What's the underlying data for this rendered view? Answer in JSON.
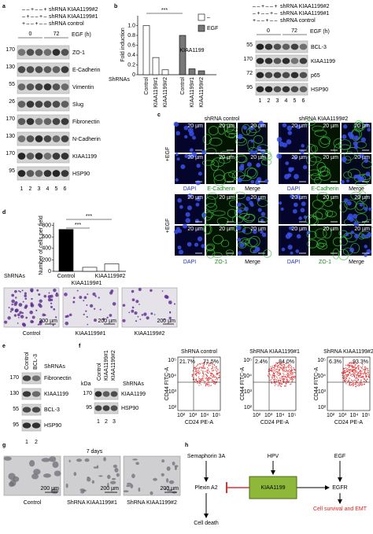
{
  "panel_labels": [
    "a",
    "b",
    "c",
    "d",
    "e",
    "f",
    "g",
    "h"
  ],
  "a": {
    "conditions": [
      {
        "label": "shRNA KIAA1199#2",
        "signs": [
          "–",
          "–",
          "+",
          "–",
          "–",
          "+"
        ]
      },
      {
        "label": "shRNA KIAA1199#1",
        "signs": [
          "–",
          "+",
          "–",
          "–",
          "+",
          "–"
        ]
      },
      {
        "label": "shRNA control",
        "signs": [
          "+",
          "–",
          "–",
          "+",
          "–",
          "–"
        ]
      }
    ],
    "time_points": [
      "0",
      "72"
    ],
    "time_label": "EGF (h)",
    "blots": [
      {
        "name": "ZO-1",
        "kda": "170"
      },
      {
        "name": "E-Cadherin",
        "kda": "130"
      },
      {
        "name": "Vimentin",
        "kda": "55"
      },
      {
        "name": "Slug",
        "kda": "26"
      },
      {
        "name": "Fibronectin",
        "kda": "170"
      },
      {
        "name": "N-Cadherin",
        "kda": "130"
      },
      {
        "name": "KIAA1199",
        "kda": "170"
      },
      {
        "name": "HSP90",
        "kda": "95"
      }
    ],
    "lanes": [
      "1",
      "2",
      "3",
      "4",
      "5",
      "6"
    ]
  },
  "b": {
    "chart": {
      "y_label": "Fold induction",
      "ylim": [
        0,
        1.2
      ],
      "yticks": [
        0,
        0.2,
        0.4,
        0.6,
        0.8,
        {
          "value": 1,
          "label": "1.0"
        }
      ],
      "categories": [
        "Control",
        "KIAA1199#1",
        "KIAA1199#2"
      ],
      "series": [
        {
          "name": "–",
          "color": "#ffffff",
          "values": [
            1.0,
            0.35,
            0.1
          ]
        },
        {
          "name": "EGF",
          "color": "#777777",
          "values": [
            0.8,
            0.12,
            0.08
          ]
        }
      ],
      "annotation": "***",
      "gene_label": "KIAA1199",
      "group_label": "ShRNAs"
    },
    "blot": {
      "conditions": [
        {
          "label": "shRNA KIAA1199#2",
          "signs": [
            "–",
            "–",
            "+",
            "–",
            "–",
            "+"
          ]
        },
        {
          "label": "shRNA KIAA1199#1",
          "signs": [
            "–",
            "+",
            "–",
            "–",
            "+",
            "–"
          ]
        },
        {
          "label": "shRNA control",
          "signs": [
            "+",
            "–",
            "–",
            "+",
            "–",
            "–"
          ]
        }
      ],
      "time_points": [
        "0",
        "72"
      ],
      "time_label": "EGF (h)",
      "blots": [
        {
          "name": "BCL-3",
          "kda": "55"
        },
        {
          "name": "KIAA1199",
          "kda": "170"
        },
        {
          "name": "p65",
          "kda": "72"
        },
        {
          "name": "HSP90",
          "kda": "95"
        }
      ],
      "lanes": [
        "1",
        "2",
        "3",
        "4",
        "5",
        "6"
      ]
    }
  },
  "c": {
    "groups": [
      "shRNA control",
      "shRNA KIAA1199#2"
    ],
    "treatment": "+EGF",
    "rows": [
      {
        "channels": [
          "DAPI",
          "E-Cadherin",
          "Merge"
        ]
      },
      {
        "channels": [
          "DAPI",
          "ZO-1",
          "Merge"
        ]
      }
    ],
    "scale": "20 µm"
  },
  "d": {
    "chart": {
      "y_label": "Number of cells per field",
      "ylim": [
        0,
        850
      ],
      "yticks": [
        0,
        200,
        400,
        600,
        800
      ],
      "categories": [
        "Control",
        "KIAA1199#1",
        "KIAA1199#2"
      ],
      "values": [
        730,
        70,
        130
      ],
      "colors": [
        "#000000",
        "#ffffff",
        "#ffffff"
      ],
      "annotations": [
        "***",
        "***"
      ],
      "group_label": "ShRNAs"
    },
    "images": {
      "captions": [
        "Control",
        "KIAA1199#1",
        "KIAA1199#2"
      ],
      "scale": "200 µm"
    }
  },
  "e": {
    "samples": [
      "Control",
      "BCL-3"
    ],
    "group_label": "ShRNAs",
    "blots": [
      {
        "name": "Fibronectin",
        "kda": "170"
      },
      {
        "name": "KIAA1199",
        "kda": "130"
      },
      {
        "name": "BCL-3",
        "kda": "55"
      },
      {
        "name": "HSP90",
        "kda": "95"
      }
    ],
    "lanes": [
      "1",
      "2"
    ]
  },
  "f": {
    "kda_label": "kDa",
    "samples": [
      "Control",
      "KIAA1199#1",
      "KIAA1199#2"
    ],
    "group_label": "ShRNAs",
    "blots": [
      {
        "name": "KIAA1199",
        "kda": "170"
      },
      {
        "name": "HSP90",
        "kda": "95"
      }
    ],
    "lanes": [
      "1",
      "2",
      "3"
    ],
    "flow": {
      "x_label": "CD24 PE-A",
      "y_label": "CD44 FITC-A",
      "tick_labels": [
        "10²",
        "10³",
        "10⁴",
        "10⁵"
      ],
      "plots": [
        {
          "title": "ShRNA control",
          "upper_left": "21.7%",
          "upper_right": "71.5%"
        },
        {
          "title": "ShRNA KIAA1199#1",
          "upper_left": "2.4%",
          "upper_right": "84.0%"
        },
        {
          "title": "ShRNA KIAA1199#2",
          "upper_left": "6.3%",
          "upper_right": "93.3%"
        }
      ]
    }
  },
  "g": {
    "duration": "7 days",
    "captions": [
      "Control",
      "ShRNA KIAA1199#1",
      "ShRNA KIAA1199#2"
    ],
    "scale": "200 µm"
  },
  "h": {
    "semaphorin": "Semaphorin 3A",
    "hpv": "HPV",
    "egf": "EGF",
    "plexin": "Plexin A2",
    "kiaa": "KIAA1199",
    "egfr": "EGFR",
    "death": "Cell death",
    "survival": "Cell survival and EMT"
  }
}
